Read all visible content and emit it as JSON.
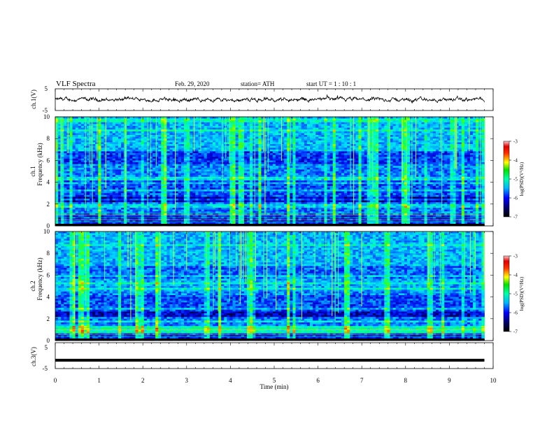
{
  "header": {
    "title": "VLF  Spectra",
    "date": "Feb. 29, 2020",
    "station": "station= ATH",
    "start": "start  UT  =    1  : 10 : 1"
  },
  "chart_data": [
    {
      "type": "line",
      "panel": "ch1-waveform",
      "ylabel": "ch.1(V)",
      "xlim": [
        0,
        10
      ],
      "ylim": [
        -5,
        5
      ],
      "yticks": [
        "5",
        "-5"
      ],
      "description_values": {
        "mean": 0,
        "trace_extent_x": [
          0,
          9.8
        ]
      },
      "color": "#000000"
    },
    {
      "type": "heatmap",
      "panel": "ch1-spectrogram",
      "ylabel": "ch.1\nFrequency  (kHz)",
      "ylabel_line1": "ch.1",
      "ylabel_line2": "Frequency  (kHz)",
      "xlim": [
        0,
        10
      ],
      "ylim": [
        0,
        10
      ],
      "yticks": [
        "0",
        "2",
        "4",
        "6",
        "8",
        "10"
      ],
      "data_extent_x": [
        0,
        9.8
      ],
      "colorbar": {
        "label": "log(PSD)(V²/Hz)",
        "range": [
          -7,
          -3
        ],
        "ticks": [
          "-3",
          "-4",
          "-5",
          "-6",
          "-7"
        ]
      }
    },
    {
      "type": "heatmap",
      "panel": "ch2-spectrogram",
      "ylabel": "ch.2\nFrequency  (kHz)",
      "ylabel_line1": "ch.2",
      "ylabel_line2": "Frequency  (kHz)",
      "xlim": [
        0,
        10
      ],
      "ylim": [
        0,
        10
      ],
      "yticks": [
        "0",
        "2",
        "4",
        "6",
        "8",
        "10"
      ],
      "data_extent_x": [
        0,
        9.8
      ],
      "colorbar": {
        "label": "log(PSD)(V²/Hz)",
        "range": [
          -7,
          -3
        ],
        "ticks": [
          "-3",
          "-4",
          "-5",
          "-6",
          "-7"
        ]
      }
    },
    {
      "type": "line",
      "panel": "ch3-waveform",
      "ylabel": "ch.3(V)",
      "xlim": [
        0,
        10
      ],
      "ylim": [
        -5,
        5
      ],
      "yticks": [
        "5",
        "-5"
      ],
      "description_values": {
        "level": -1.8,
        "trace_extent_x": [
          0,
          9.8
        ]
      },
      "color": "#000000"
    }
  ],
  "xaxis": {
    "label": "Time  (min)",
    "ticks": [
      "0",
      "1",
      "2",
      "3",
      "4",
      "5",
      "6",
      "7",
      "8",
      "9",
      "10"
    ]
  }
}
